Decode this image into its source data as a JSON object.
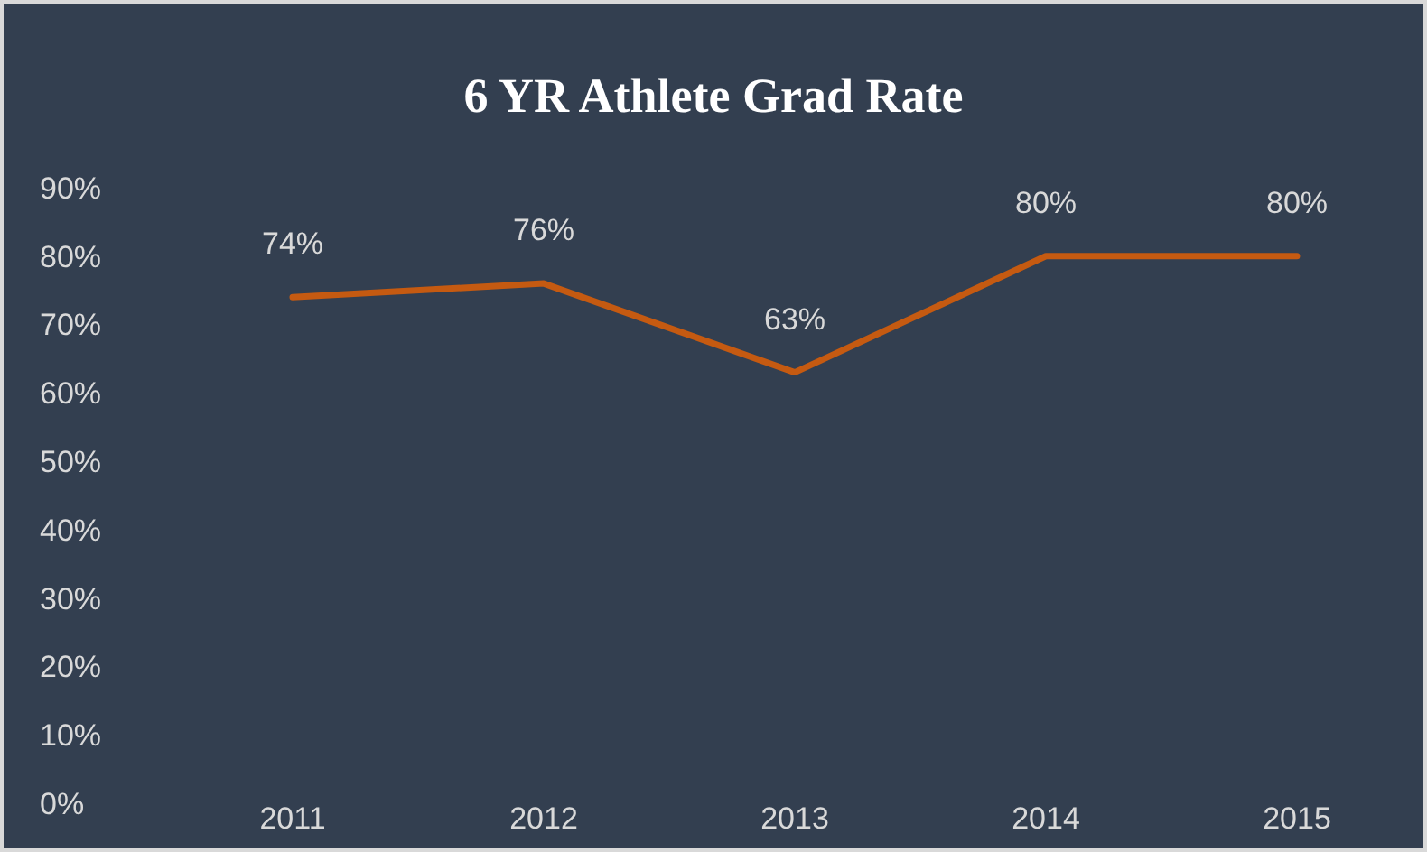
{
  "chart_data": {
    "type": "line",
    "title": "6 YR Athlete Grad Rate",
    "categories": [
      "2011",
      "2012",
      "2013",
      "2014",
      "2015"
    ],
    "series": [
      {
        "color": "#c55a11",
        "values": [
          74,
          76,
          63,
          80,
          80
        ]
      }
    ],
    "ylim": [
      0,
      90
    ],
    "yticks": [
      {
        "value": 0,
        "label": "0%"
      },
      {
        "value": 10,
        "label": "10%"
      },
      {
        "value": 20,
        "label": "20%"
      },
      {
        "value": 30,
        "label": "30%"
      },
      {
        "value": 40,
        "label": "40%"
      },
      {
        "value": 50,
        "label": "50%"
      },
      {
        "value": 60,
        "label": "60%"
      },
      {
        "value": 70,
        "label": "70%"
      },
      {
        "value": 80,
        "label": "80%"
      },
      {
        "value": 90,
        "label": "90%"
      }
    ],
    "value_labels": [
      "74%",
      "76%",
      "63%",
      "80%",
      "80%"
    ],
    "grid": false,
    "marker": "none",
    "line_style": "solid"
  }
}
